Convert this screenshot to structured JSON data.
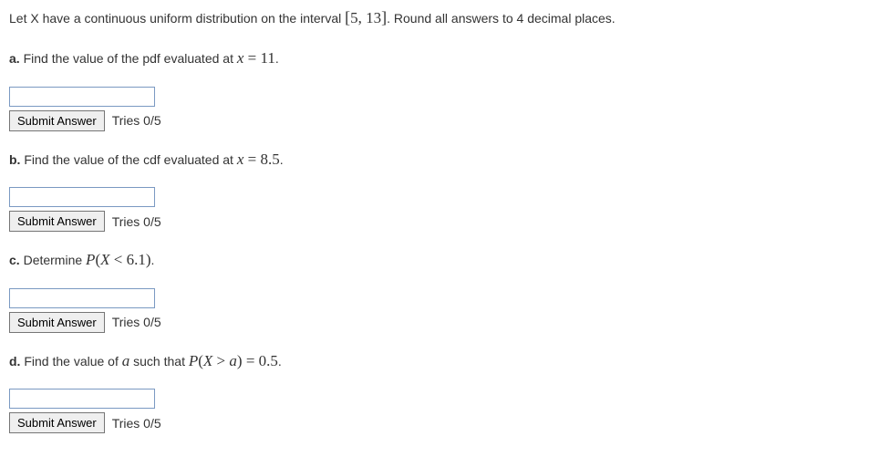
{
  "intro": {
    "prefix": "Let X have a continuous uniform distribution on the interval ",
    "interval_open": "[",
    "interval_a": "5",
    "interval_sep": ", ",
    "interval_b": "13",
    "interval_close": "]",
    "suffix": ". Round all answers to 4 decimal places."
  },
  "parts": {
    "a": {
      "label": "a.",
      "text_before": " Find the value of the pdf evaluated at ",
      "var": "x",
      "eq": " = ",
      "val": "11",
      "text_after": "."
    },
    "b": {
      "label": "b.",
      "text_before": " Find the value of the cdf evaluated at ",
      "var": "x",
      "eq": " = ",
      "val": "8.5",
      "text_after": "."
    },
    "c": {
      "label": "c.",
      "text_before": " Determine ",
      "expr_P": "P",
      "expr_open": "(",
      "expr_X": "X",
      "expr_op": " < ",
      "expr_val": "6.1",
      "expr_close": ")",
      "text_after": "."
    },
    "d": {
      "label": "d.",
      "text_before": " Find the value of ",
      "var_a": "a",
      "text_mid": " such that ",
      "expr_P": "P",
      "expr_open": "(",
      "expr_X": "X",
      "expr_op": " > ",
      "expr_var": "a",
      "expr_close": ")",
      "expr_eq": " = ",
      "expr_val": "0.5",
      "text_after": "."
    }
  },
  "ui": {
    "submit_label": "Submit Answer",
    "tries_label": "Tries 0/5"
  }
}
